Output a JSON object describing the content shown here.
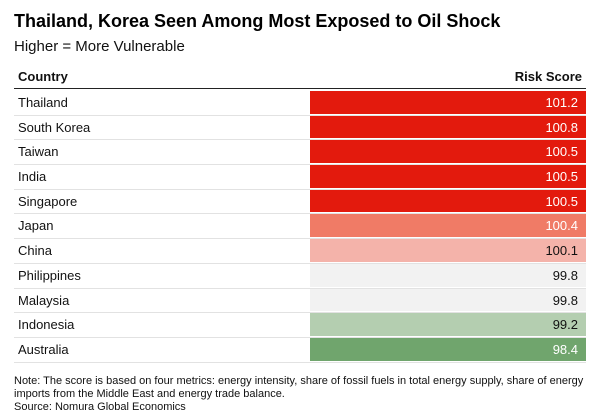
{
  "title": "Thailand, Korea Seen Among Most Exposed to Oil Shock",
  "subtitle": "Higher = More Vulnerable",
  "note": "Note: The score is based on four metrics: energy intensity, share of fossil fuels in total energy supply, share of energy imports from the Middle East and energy trade balance.",
  "source": "Source: Nomura Global Economics",
  "chart_data": {
    "type": "table",
    "columns": [
      "Country",
      "Risk Score"
    ],
    "rows": [
      {
        "country": "Thailand",
        "score": "101.2",
        "color": "#e31a0d"
      },
      {
        "country": "South Korea",
        "score": "100.8",
        "color": "#e31a0d"
      },
      {
        "country": "Taiwan",
        "score": "100.5",
        "color": "#e31a0d"
      },
      {
        "country": "India",
        "score": "100.5",
        "color": "#e31a0d"
      },
      {
        "country": "Singapore",
        "score": "100.5",
        "color": "#e31a0d"
      },
      {
        "country": "Japan",
        "score": "100.4",
        "color": "#f07b66"
      },
      {
        "country": "China",
        "score": "100.1",
        "color": "#f4b3aa"
      },
      {
        "country": "Philippines",
        "score": "99.8",
        "color": "#f2f2f2"
      },
      {
        "country": "Malaysia",
        "score": "99.8",
        "color": "#f2f2f2"
      },
      {
        "country": "Indonesia",
        "score": "99.2",
        "color": "#b4ceb0"
      },
      {
        "country": "Australia",
        "score": "98.4",
        "color": "#70a56d"
      }
    ]
  }
}
